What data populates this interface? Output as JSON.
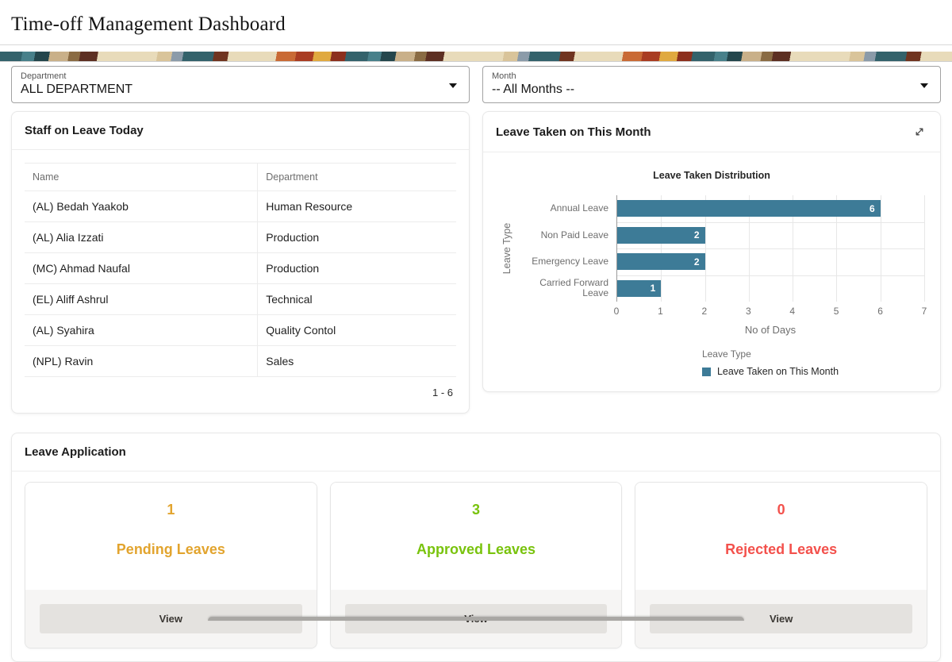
{
  "page": {
    "title": "Time-off Management Dashboard"
  },
  "banner_palette": [
    "#33626b",
    "#48808a",
    "#24464c",
    "#c9b089",
    "#8a6b43",
    "#5d2f22",
    "#e8dbba",
    "#8b9ba9",
    "#c96a35",
    "#a93c22",
    "#e0a93f",
    "#8c2f1d"
  ],
  "filters": {
    "department": {
      "label": "Department",
      "value": "ALL DEPARTMENT"
    },
    "month": {
      "label": "Month",
      "value": "-- All Months --"
    }
  },
  "staff_on_leave": {
    "title": "Staff on Leave Today",
    "columns": [
      "Name",
      "Department"
    ],
    "rows": [
      [
        "(AL) Bedah Yaakob",
        "Human Resource"
      ],
      [
        "(AL) Alia Izzati",
        "Production"
      ],
      [
        "(MC) Ahmad Naufal",
        "Production"
      ],
      [
        "(EL) Aliff Ashrul",
        "Technical"
      ],
      [
        "(AL) Syahira",
        "Quality Contol"
      ],
      [
        "(NPL) Ravin",
        "Sales"
      ]
    ],
    "pagination": "1 - 6"
  },
  "leave_taken": {
    "title": "Leave Taken on This Month"
  },
  "chart_data": {
    "type": "bar",
    "orientation": "horizontal",
    "title": "Leave Taken Distribution",
    "categories": [
      "Annual Leave",
      "Non Paid Leave",
      "Emergency Leave",
      "Carried Forward Leave"
    ],
    "values": [
      6,
      2,
      2,
      1
    ],
    "xlabel": "No of Days",
    "ylabel": "Leave Type",
    "xlim": [
      0,
      7
    ],
    "xticks": [
      0,
      1,
      2,
      3,
      4,
      5,
      6,
      7
    ],
    "grid": true,
    "bar_color": "#3d7b97",
    "legend": {
      "position": "bottom",
      "title": "Leave Type",
      "items": [
        {
          "label": "Leave Taken on This Month",
          "color": "#3d7b97"
        }
      ]
    }
  },
  "leave_application": {
    "title": "Leave Application",
    "cards": [
      {
        "count": "1",
        "label": "Pending Leaves",
        "color": "#e2a42e",
        "action": "View"
      },
      {
        "count": "3",
        "label": "Approved Leaves",
        "color": "#79c30d",
        "action": "View"
      },
      {
        "count": "0",
        "label": "Rejected Leaves",
        "color": "#f3514c",
        "action": "View"
      }
    ]
  }
}
